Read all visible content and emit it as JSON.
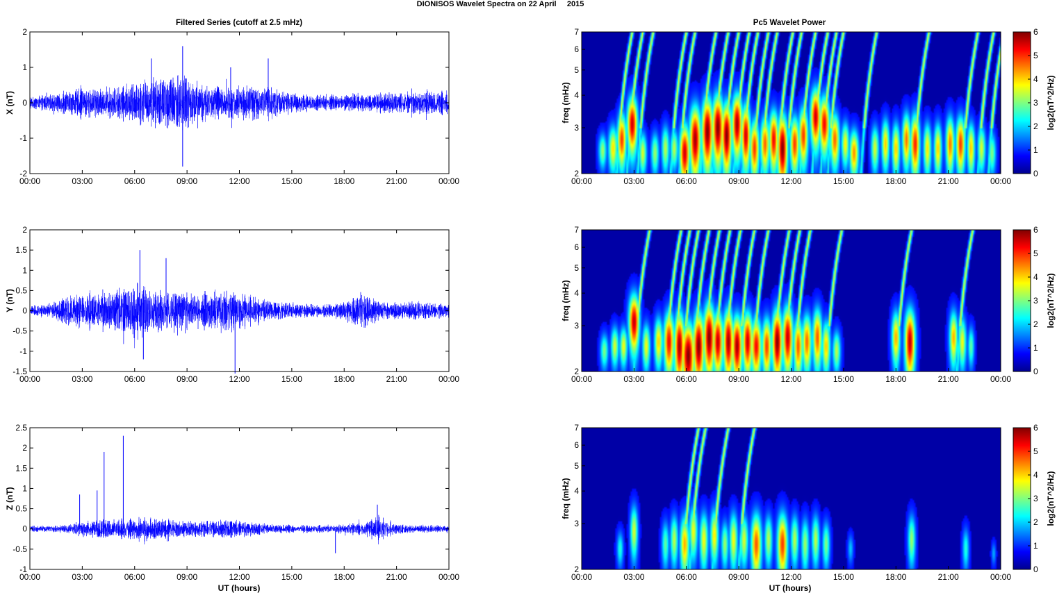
{
  "figure": {
    "title": "DIONISOS Wavelet Spectra on 22 April     2015",
    "left_column_title": "Filtered Series (cutoff at 2.5 mHz)",
    "right_column_title": "Pc5 Wavelet Power",
    "xlabel": "UT (hours)"
  },
  "colors": {
    "trace": "#0000ff",
    "background_spectrum": "#00008f",
    "axis": "#000000"
  },
  "chart_data": [
    {
      "type": "line",
      "panel": "X",
      "ylabel": "X (nT)",
      "x_ticks": [
        "00:00",
        "03:00",
        "06:00",
        "09:00",
        "12:00",
        "15:00",
        "18:00",
        "21:00",
        "00:00"
      ],
      "y_ticks": [
        "2",
        "1",
        "0",
        "-1",
        "-2"
      ],
      "ylim": [
        -2,
        2
      ],
      "xlim_hours": [
        0,
        24
      ],
      "envelope": {
        "hours": [
          0,
          1,
          2,
          3,
          4,
          5,
          6,
          7,
          8,
          9,
          10,
          11,
          12,
          13,
          14,
          15,
          16,
          17,
          18,
          19,
          20,
          21,
          22,
          23,
          24
        ],
        "amplitude_nT": [
          0.25,
          0.3,
          0.45,
          0.55,
          0.5,
          0.6,
          0.75,
          0.9,
          1.1,
          1.0,
          0.75,
          0.6,
          0.6,
          0.7,
          0.55,
          0.4,
          0.3,
          0.3,
          0.3,
          0.35,
          0.35,
          0.35,
          0.4,
          0.45,
          0.4
        ]
      },
      "spikes": [
        {
          "hour": 8.75,
          "value": 1.6
        },
        {
          "hour": 8.75,
          "value": -1.8
        },
        {
          "hour": 6.95,
          "value": 1.25
        },
        {
          "hour": 13.65,
          "value": 1.25
        },
        {
          "hour": 11.5,
          "value": 1.0
        }
      ]
    },
    {
      "type": "line",
      "panel": "Y",
      "ylabel": "Y (nT)",
      "x_ticks": [
        "00:00",
        "03:00",
        "06:00",
        "09:00",
        "12:00",
        "15:00",
        "18:00",
        "21:00",
        "00:00"
      ],
      "y_ticks": [
        "2",
        "1.5",
        "1",
        "0.5",
        "0",
        "-0.5",
        "-1",
        "-1.5"
      ],
      "ylim": [
        -1.5,
        2
      ],
      "xlim_hours": [
        0,
        24
      ],
      "envelope": {
        "hours": [
          0,
          1,
          2,
          3,
          4,
          5,
          6,
          7,
          8,
          9,
          10,
          11,
          12,
          13,
          14,
          15,
          16,
          17,
          18,
          19,
          20,
          21,
          22,
          23,
          24
        ],
        "amplitude_nT": [
          0.15,
          0.2,
          0.45,
          0.6,
          0.5,
          0.65,
          0.85,
          0.75,
          0.65,
          0.55,
          0.6,
          0.75,
          0.6,
          0.4,
          0.3,
          0.25,
          0.2,
          0.2,
          0.3,
          0.6,
          0.3,
          0.25,
          0.3,
          0.3,
          0.2
        ]
      },
      "spikes": [
        {
          "hour": 6.3,
          "value": 1.5
        },
        {
          "hour": 7.8,
          "value": 1.3
        },
        {
          "hour": 11.75,
          "value": -1.55
        },
        {
          "hour": 6.5,
          "value": -1.2
        }
      ]
    },
    {
      "type": "line",
      "panel": "Z",
      "ylabel": "Z (nT)",
      "x_ticks": [
        "00:00",
        "03:00",
        "06:00",
        "09:00",
        "12:00",
        "15:00",
        "18:00",
        "21:00",
        "00:00"
      ],
      "y_ticks": [
        "2.5",
        "2",
        "1.5",
        "1",
        "0.5",
        "0",
        "-0.5",
        "-1"
      ],
      "ylim": [
        -1,
        2.5
      ],
      "xlim_hours": [
        0,
        24
      ],
      "envelope": {
        "hours": [
          0,
          1,
          2,
          3,
          4,
          5,
          6,
          7,
          8,
          9,
          10,
          11,
          12,
          13,
          14,
          15,
          16,
          17,
          18,
          19,
          20,
          21,
          22,
          23,
          24
        ],
        "amplitude_nT": [
          0.1,
          0.1,
          0.12,
          0.25,
          0.3,
          0.3,
          0.35,
          0.35,
          0.3,
          0.25,
          0.3,
          0.3,
          0.25,
          0.2,
          0.15,
          0.12,
          0.12,
          0.12,
          0.15,
          0.2,
          0.4,
          0.15,
          0.12,
          0.12,
          0.1
        ]
      },
      "spikes": [
        {
          "hour": 2.85,
          "value": 0.85
        },
        {
          "hour": 3.85,
          "value": 0.95
        },
        {
          "hour": 4.25,
          "value": 1.9
        },
        {
          "hour": 5.35,
          "value": 2.3
        },
        {
          "hour": 19.9,
          "value": 0.6
        },
        {
          "hour": 17.5,
          "value": -0.6
        }
      ]
    },
    {
      "type": "heatmap",
      "panel": "X",
      "ylabel": "freq (mHz)",
      "yscale": "log",
      "y_ticks": [
        "7",
        "6",
        "5",
        "4",
        "3",
        "2"
      ],
      "ylim_mHz": [
        2,
        7
      ],
      "x_ticks": [
        "00:00",
        "03:00",
        "06:00",
        "09:00",
        "12:00",
        "15:00",
        "18:00",
        "21:00",
        "00:00"
      ],
      "colorbar_label": "log2(nT^2/Hz)",
      "colorbar_ticks": [
        "6",
        "5",
        "4",
        "3",
        "2",
        "1",
        "0"
      ],
      "clim": [
        0,
        6
      ],
      "blobs": [
        [
          1.2,
          2.45,
          0.15,
          0.25,
          2.8
        ],
        [
          1.8,
          2.5,
          0.18,
          0.35,
          3.6
        ],
        [
          2.3,
          2.7,
          0.18,
          0.45,
          4.8
        ],
        [
          2.9,
          3.1,
          0.2,
          0.55,
          5.5
        ],
        [
          3.5,
          2.4,
          0.15,
          0.3,
          3.2
        ],
        [
          4.2,
          2.4,
          0.15,
          0.3,
          2.8
        ],
        [
          4.8,
          2.5,
          0.15,
          0.35,
          3.0
        ],
        [
          5.3,
          2.5,
          0.15,
          0.3,
          3.0
        ],
        [
          5.9,
          2.4,
          0.2,
          0.45,
          5.5
        ],
        [
          6.5,
          2.7,
          0.22,
          0.6,
          5.8
        ],
        [
          7.2,
          2.9,
          0.22,
          0.65,
          6.0
        ],
        [
          7.8,
          3.0,
          0.22,
          0.65,
          6.0
        ],
        [
          8.3,
          2.8,
          0.2,
          0.6,
          6.0
        ],
        [
          8.9,
          3.1,
          0.2,
          0.6,
          5.8
        ],
        [
          9.4,
          2.8,
          0.18,
          0.55,
          5.5
        ],
        [
          9.9,
          2.5,
          0.18,
          0.45,
          4.8
        ],
        [
          10.5,
          2.6,
          0.18,
          0.45,
          4.5
        ],
        [
          11.0,
          2.7,
          0.18,
          0.5,
          5.2
        ],
        [
          11.5,
          2.5,
          0.2,
          0.55,
          6.0
        ],
        [
          12.2,
          2.6,
          0.18,
          0.45,
          4.8
        ],
        [
          12.7,
          2.8,
          0.18,
          0.5,
          4.8
        ],
        [
          13.4,
          3.3,
          0.2,
          0.6,
          5.5
        ],
        [
          13.9,
          3.1,
          0.2,
          0.55,
          5.2
        ],
        [
          14.5,
          2.7,
          0.18,
          0.45,
          4.5
        ],
        [
          15.1,
          2.6,
          0.15,
          0.35,
          3.5
        ],
        [
          15.6,
          2.4,
          0.18,
          0.35,
          4.2
        ],
        [
          16.8,
          2.5,
          0.15,
          0.35,
          3.2
        ],
        [
          17.4,
          2.6,
          0.15,
          0.4,
          3.8
        ],
        [
          18.0,
          2.5,
          0.15,
          0.4,
          3.8
        ],
        [
          18.6,
          2.7,
          0.16,
          0.45,
          4.4
        ],
        [
          19.1,
          2.6,
          0.18,
          0.5,
          5.0
        ],
        [
          19.8,
          2.5,
          0.15,
          0.4,
          3.6
        ],
        [
          20.4,
          2.5,
          0.15,
          0.4,
          3.8
        ],
        [
          21.1,
          2.6,
          0.16,
          0.45,
          4.4
        ],
        [
          21.7,
          2.6,
          0.18,
          0.45,
          4.8
        ],
        [
          22.3,
          2.5,
          0.15,
          0.4,
          3.8
        ],
        [
          22.9,
          2.5,
          0.15,
          0.35,
          3.2
        ],
        [
          23.5,
          2.4,
          0.15,
          0.3,
          2.6
        ]
      ],
      "streaks": [
        2.0,
        2.6,
        3.2,
        5.1,
        5.6,
        6.8,
        7.5,
        8.1,
        8.7,
        9.2,
        9.8,
        10.3,
        11.2,
        11.7,
        12.5,
        13.2,
        13.7,
        14.1,
        16.0,
        19.0,
        21.8,
        22.7,
        23.3
      ]
    },
    {
      "type": "heatmap",
      "panel": "Y",
      "ylabel": "freq (mHz)",
      "yscale": "log",
      "y_ticks": [
        "7",
        "6",
        "5",
        "4",
        "3",
        "2"
      ],
      "ylim_mHz": [
        2,
        7
      ],
      "x_ticks": [
        "00:00",
        "03:00",
        "06:00",
        "09:00",
        "12:00",
        "15:00",
        "18:00",
        "21:00",
        "00:00"
      ],
      "colorbar_label": "log2(nT^2/Hz)",
      "colorbar_ticks": [
        "6",
        "5",
        "4",
        "3",
        "2",
        "1",
        "0"
      ],
      "clim": [
        0,
        6
      ],
      "blobs": [
        [
          1.3,
          2.4,
          0.15,
          0.25,
          2.6
        ],
        [
          1.9,
          2.5,
          0.15,
          0.3,
          3.2
        ],
        [
          2.4,
          2.5,
          0.15,
          0.3,
          3.4
        ],
        [
          3.0,
          3.1,
          0.2,
          0.55,
          5.6
        ],
        [
          3.7,
          2.5,
          0.15,
          0.35,
          3.4
        ],
        [
          4.4,
          2.6,
          0.16,
          0.4,
          3.8
        ],
        [
          5.0,
          2.6,
          0.2,
          0.5,
          5.2
        ],
        [
          5.6,
          2.5,
          0.2,
          0.55,
          5.8
        ],
        [
          6.1,
          2.3,
          0.25,
          0.5,
          6.0
        ],
        [
          6.7,
          2.5,
          0.22,
          0.55,
          6.0
        ],
        [
          7.3,
          2.7,
          0.22,
          0.6,
          6.0
        ],
        [
          7.8,
          2.6,
          0.2,
          0.5,
          5.6
        ],
        [
          8.4,
          2.6,
          0.2,
          0.55,
          5.8
        ],
        [
          8.9,
          2.5,
          0.2,
          0.5,
          5.8
        ],
        [
          9.5,
          2.6,
          0.2,
          0.5,
          5.5
        ],
        [
          10.0,
          2.5,
          0.2,
          0.45,
          5.2
        ],
        [
          10.6,
          2.5,
          0.18,
          0.45,
          4.8
        ],
        [
          11.2,
          2.6,
          0.2,
          0.55,
          6.0
        ],
        [
          11.8,
          2.7,
          0.2,
          0.55,
          5.6
        ],
        [
          12.4,
          2.5,
          0.18,
          0.45,
          4.6
        ],
        [
          12.9,
          2.6,
          0.18,
          0.45,
          4.5
        ],
        [
          13.5,
          2.7,
          0.18,
          0.5,
          4.6
        ],
        [
          14.0,
          2.5,
          0.16,
          0.4,
          3.8
        ],
        [
          14.6,
          2.4,
          0.15,
          0.3,
          3.0
        ],
        [
          18.0,
          2.7,
          0.16,
          0.45,
          4.0
        ],
        [
          18.8,
          2.6,
          0.2,
          0.55,
          5.6
        ],
        [
          21.3,
          2.7,
          0.16,
          0.45,
          4.0
        ],
        [
          21.8,
          2.6,
          0.15,
          0.4,
          3.4
        ],
        [
          22.3,
          2.5,
          0.12,
          0.3,
          2.4
        ]
      ],
      "streaks": [
        3.0,
        4.8,
        5.3,
        5.8,
        6.4,
        7.0,
        7.6,
        8.2,
        9.0,
        9.8,
        11.0,
        11.6,
        12.2,
        14.0,
        18.0,
        21.5
      ]
    },
    {
      "type": "heatmap",
      "panel": "Z",
      "ylabel": "freq (mHz)",
      "yscale": "log",
      "y_ticks": [
        "7",
        "6",
        "5",
        "4",
        "3",
        "2"
      ],
      "ylim_mHz": [
        2,
        7
      ],
      "x_ticks": [
        "00:00",
        "03:00",
        "06:00",
        "09:00",
        "12:00",
        "15:00",
        "18:00",
        "21:00",
        "00:00"
      ],
      "colorbar_label": "log2(nT^2/Hz)",
      "colorbar_ticks": [
        "6",
        "5",
        "4",
        "3",
        "2",
        "1",
        "0"
      ],
      "clim": [
        0,
        6
      ],
      "blobs": [
        [
          2.2,
          2.4,
          0.12,
          0.25,
          2.0
        ],
        [
          3.0,
          2.8,
          0.14,
          0.45,
          3.2
        ],
        [
          4.8,
          2.5,
          0.14,
          0.35,
          2.4
        ],
        [
          5.3,
          2.6,
          0.15,
          0.4,
          3.0
        ],
        [
          5.9,
          2.5,
          0.18,
          0.45,
          4.0
        ],
        [
          6.4,
          2.8,
          0.16,
          0.45,
          3.4
        ],
        [
          7.0,
          2.6,
          0.16,
          0.45,
          3.4
        ],
        [
          7.6,
          2.7,
          0.16,
          0.45,
          3.6
        ],
        [
          8.2,
          2.5,
          0.14,
          0.35,
          2.8
        ],
        [
          8.7,
          2.6,
          0.16,
          0.45,
          3.4
        ],
        [
          9.3,
          2.6,
          0.16,
          0.4,
          3.2
        ],
        [
          10.0,
          2.5,
          0.2,
          0.5,
          4.6
        ],
        [
          10.7,
          2.6,
          0.15,
          0.4,
          3.0
        ],
        [
          11.5,
          2.5,
          0.2,
          0.5,
          4.8
        ],
        [
          12.2,
          2.6,
          0.15,
          0.4,
          3.0
        ],
        [
          12.8,
          2.5,
          0.15,
          0.4,
          2.8
        ],
        [
          13.4,
          2.6,
          0.15,
          0.4,
          3.0
        ],
        [
          14.0,
          2.5,
          0.14,
          0.35,
          2.6
        ],
        [
          15.4,
          2.4,
          0.1,
          0.2,
          1.4
        ],
        [
          18.9,
          2.6,
          0.14,
          0.4,
          2.8
        ],
        [
          22.0,
          2.4,
          0.12,
          0.3,
          2.0
        ],
        [
          23.6,
          2.3,
          0.08,
          0.15,
          1.2
        ]
      ],
      "streaks": [
        5.8,
        6.2,
        7.5,
        9.0
      ]
    }
  ]
}
